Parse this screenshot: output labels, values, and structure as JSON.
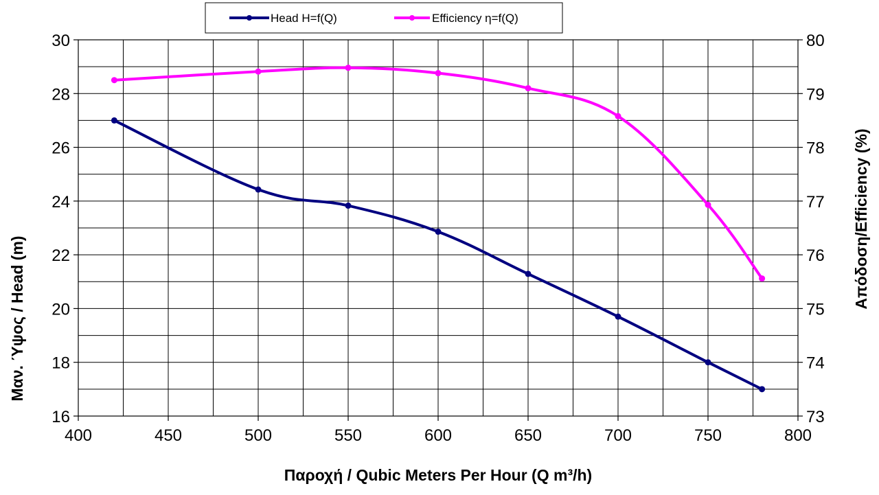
{
  "chart_data": {
    "type": "line",
    "xlabel": "Παροχή / Qubic Meters Per Hour (Q m³/h)",
    "ylabel_left": "Μαν. Ύψος / Head (m)",
    "ylabel_right": "Απόδοση/Efficiency (%)",
    "xlim": [
      400,
      800
    ],
    "ylim_left": [
      16,
      30
    ],
    "ylim_right": [
      73,
      80
    ],
    "x_ticks": [
      "400",
      "450",
      "500",
      "550",
      "600",
      "650",
      "700",
      "750",
      "800"
    ],
    "y_left_ticks": [
      "16",
      "18",
      "20",
      "22",
      "24",
      "26",
      "28",
      "30"
    ],
    "y_right_ticks": [
      "73",
      "74",
      "75",
      "76",
      "77",
      "78",
      "79",
      "80"
    ],
    "grid": true,
    "legend_position": "top-center",
    "series": [
      {
        "name": "Head H=f(Q)",
        "axis": "left",
        "color": "#000080",
        "x": [
          420,
          500,
          550,
          600,
          650,
          700,
          750,
          780
        ],
        "y": [
          27.0,
          24.43,
          23.83,
          22.86,
          21.29,
          19.7,
          18.0,
          17.0
        ]
      },
      {
        "name": "Efficiency η=f(Q)",
        "axis": "right",
        "color": "#ff00ff",
        "x": [
          420,
          500,
          550,
          600,
          650,
          700,
          750,
          780
        ],
        "y": [
          79.25,
          79.41,
          79.48,
          79.38,
          79.1,
          78.58,
          76.93,
          75.56
        ]
      }
    ]
  }
}
